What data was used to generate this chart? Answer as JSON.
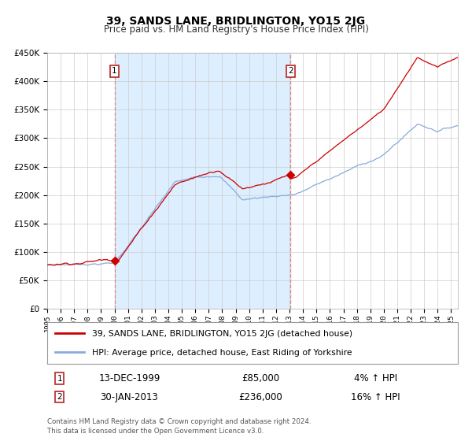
{
  "title": "39, SANDS LANE, BRIDLINGTON, YO15 2JG",
  "subtitle": "Price paid vs. HM Land Registry's House Price Index (HPI)",
  "legend_line1": "39, SANDS LANE, BRIDLINGTON, YO15 2JG (detached house)",
  "legend_line2": "HPI: Average price, detached house, East Riding of Yorkshire",
  "annotation1_label": "1",
  "annotation1_date": "13-DEC-1999",
  "annotation1_price": "£85,000",
  "annotation1_hpi": "4% ↑ HPI",
  "annotation2_label": "2",
  "annotation2_date": "30-JAN-2013",
  "annotation2_price": "£236,000",
  "annotation2_hpi": "16% ↑ HPI",
  "footer_line1": "Contains HM Land Registry data © Crown copyright and database right 2024.",
  "footer_line2": "This data is licensed under the Open Government Licence v3.0.",
  "sale1_year": 2000.0,
  "sale1_value": 85000,
  "sale2_year": 2013.08,
  "sale2_value": 236000,
  "line_color_red": "#cc0000",
  "line_color_blue": "#88aadd",
  "dashed_line_color": "#dd8888",
  "shaded_color": "#ddeeff",
  "background_color": "#ffffff",
  "grid_color": "#cccccc",
  "ylim": [
    0,
    450000
  ],
  "xlim_start": 1995.0,
  "xlim_end": 2025.5
}
